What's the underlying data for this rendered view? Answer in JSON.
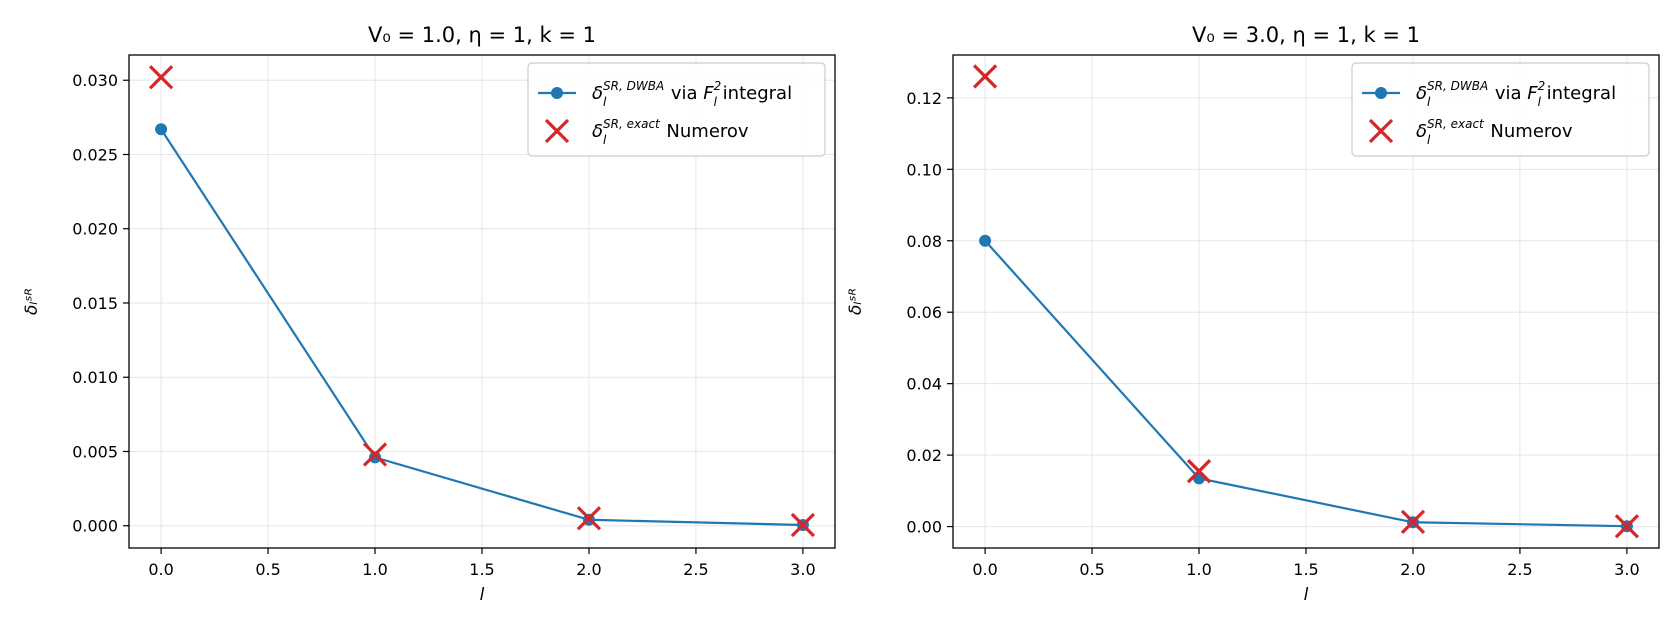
{
  "chart_data": [
    {
      "type": "line",
      "title": "V₀ = 1.0, η = 1, k = 1",
      "xlabel": "l",
      "ylabel": "δₗˢᴿ",
      "xlim": [
        -0.15,
        3.15
      ],
      "ylim": [
        -0.0015,
        0.0317
      ],
      "x_ticks": [
        0.0,
        0.5,
        1.0,
        1.5,
        2.0,
        2.5,
        3.0
      ],
      "x_tick_labels": [
        "0.0",
        "0.5",
        "1.0",
        "1.5",
        "2.0",
        "2.5",
        "3.0"
      ],
      "y_ticks": [
        0.0,
        0.005,
        0.01,
        0.015,
        0.02,
        0.025,
        0.03
      ],
      "y_tick_labels": [
        "0.000",
        "0.005",
        "0.010",
        "0.015",
        "0.020",
        "0.025",
        "0.030"
      ],
      "grid": true,
      "legend_position": "top-right",
      "series": [
        {
          "name": "δₗ^{SR,DWBA} via Fₗ² integral",
          "name_parts": {
            "delta": "δ",
            "sub": "l",
            "sup": "SR, DWBA",
            "via": " via ",
            "F": "F",
            "F_sub": "l",
            "F_sup": "2",
            "tail": " integral"
          },
          "marker": "circle",
          "line": true,
          "color": "#1f77b4",
          "x": [
            0,
            1,
            2,
            3
          ],
          "y": [
            0.0267,
            0.0046,
            0.0004,
            5e-05
          ]
        },
        {
          "name": "δₗ^{SR,exact} Numerov",
          "name_parts": {
            "delta": "δ",
            "sub": "l",
            "sup": "SR, exact",
            "tail": " Numerov"
          },
          "marker": "x",
          "line": false,
          "color": "#d62728",
          "x": [
            0,
            1,
            2,
            3
          ],
          "y": [
            0.0302,
            0.0048,
            0.0005,
            5e-05
          ]
        }
      ]
    },
    {
      "type": "line",
      "title": "V₀ = 3.0, η = 1, k = 1",
      "xlabel": "l",
      "ylabel": "δₗˢᴿ",
      "xlim": [
        -0.15,
        3.15
      ],
      "ylim": [
        -0.006,
        0.132
      ],
      "x_ticks": [
        0.0,
        0.5,
        1.0,
        1.5,
        2.0,
        2.5,
        3.0
      ],
      "x_tick_labels": [
        "0.0",
        "0.5",
        "1.0",
        "1.5",
        "2.0",
        "2.5",
        "3.0"
      ],
      "y_ticks": [
        0.0,
        0.02,
        0.04,
        0.06,
        0.08,
        0.1,
        0.12
      ],
      "y_tick_labels": [
        "0.00",
        "0.02",
        "0.04",
        "0.06",
        "0.08",
        "0.10",
        "0.12"
      ],
      "grid": true,
      "legend_position": "top-right",
      "series": [
        {
          "name": "δₗ^{SR,DWBA} via Fₗ² integral",
          "name_parts": {
            "delta": "δ",
            "sub": "l",
            "sup": "SR, DWBA",
            "via": " via ",
            "F": "F",
            "F_sub": "l",
            "F_sup": "2",
            "tail": " integral"
          },
          "marker": "circle",
          "line": true,
          "color": "#1f77b4",
          "x": [
            0,
            1,
            2,
            3
          ],
          "y": [
            0.08,
            0.0135,
            0.0012,
            0.0001
          ]
        },
        {
          "name": "δₗ^{SR,exact} Numerov",
          "name_parts": {
            "delta": "δ",
            "sub": "l",
            "sup": "SR, exact",
            "tail": " Numerov"
          },
          "marker": "x",
          "line": false,
          "color": "#d62728",
          "x": [
            0,
            1,
            2,
            3
          ],
          "y": [
            0.126,
            0.0155,
            0.0013,
            0.0001
          ]
        }
      ]
    }
  ]
}
